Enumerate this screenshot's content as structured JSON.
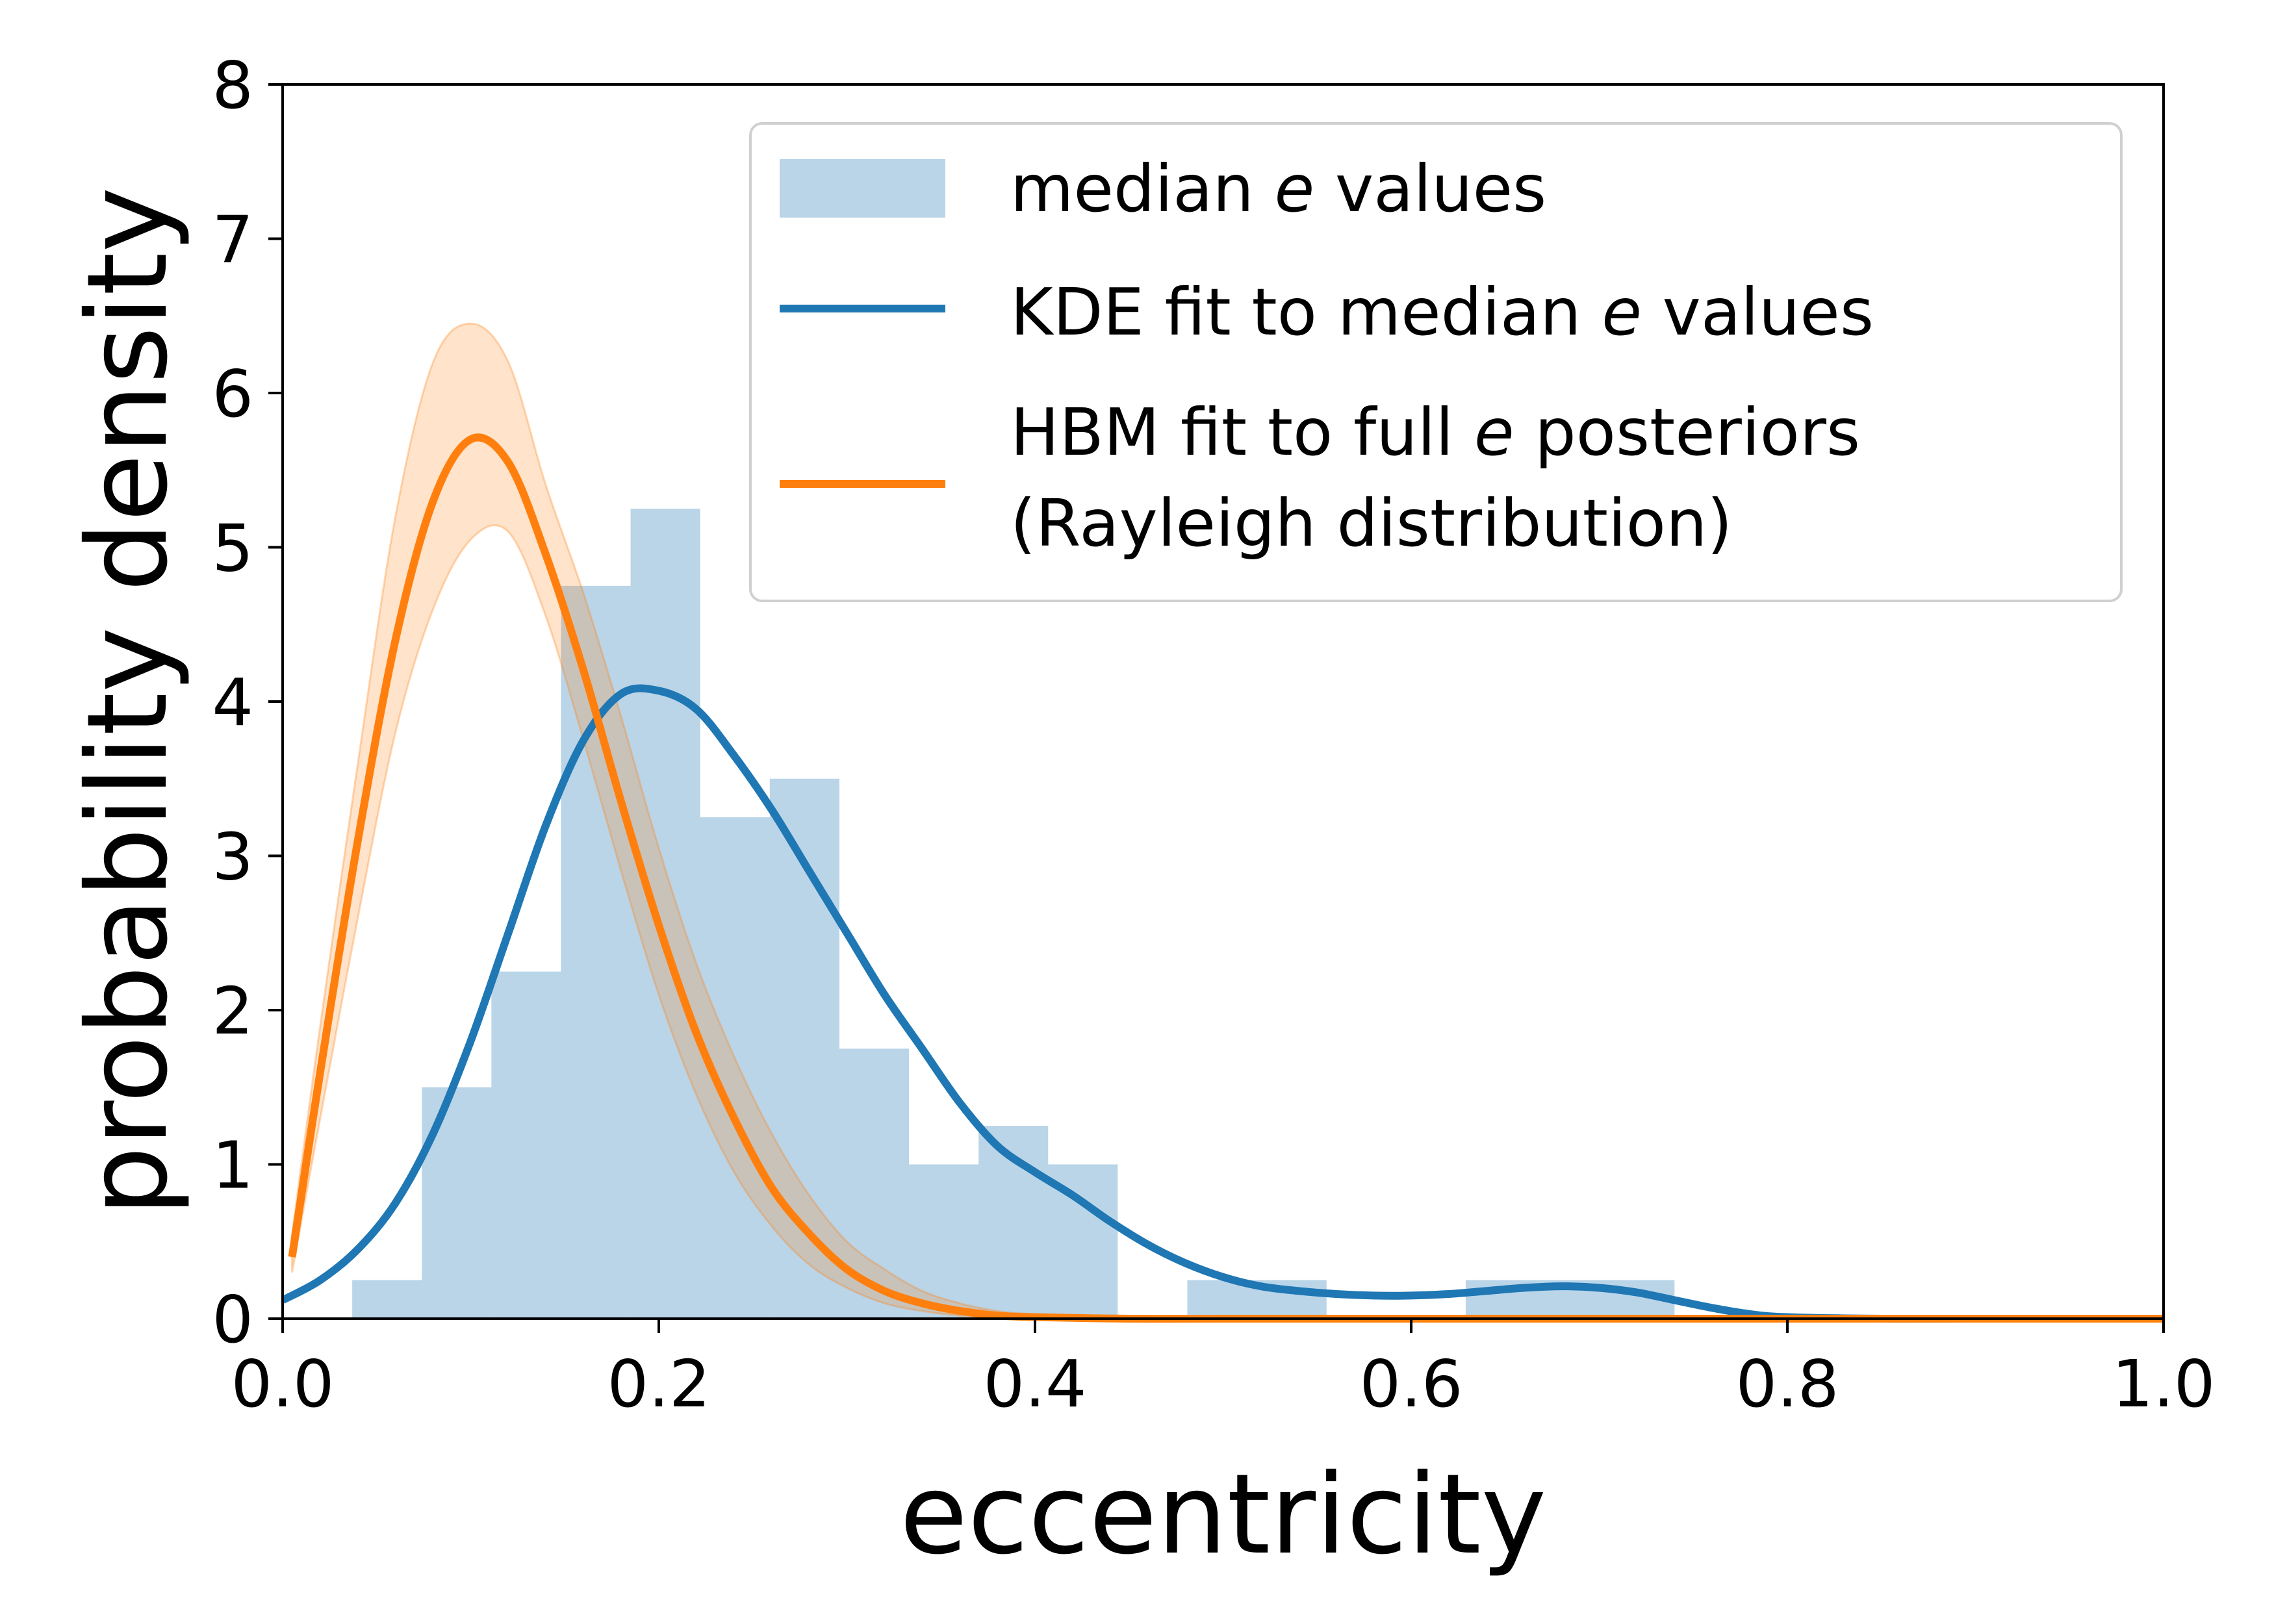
{
  "chart_data": {
    "type": "histogram",
    "xlabel": "eccentricity",
    "ylabel": "probability density",
    "xlim": [
      0.0,
      1.0
    ],
    "ylim": [
      0,
      8
    ],
    "x_ticks": [
      "0.0",
      "0.2",
      "0.4",
      "0.6",
      "0.8",
      "1.0"
    ],
    "y_ticks": [
      "0",
      "1",
      "2",
      "3",
      "4",
      "5",
      "6",
      "7",
      "8"
    ],
    "grid": false,
    "legend_position": "top-right",
    "colors": {
      "histogram": "#1f77b4",
      "kde": "#1f77b4",
      "hbm": "#ff7f0e"
    },
    "histogram": {
      "name": "median e values",
      "bins": [
        {
          "x0": 0.037,
          "x1": 0.074,
          "density": 0.25
        },
        {
          "x0": 0.074,
          "x1": 0.111,
          "density": 1.5
        },
        {
          "x0": 0.111,
          "x1": 0.148,
          "density": 2.25
        },
        {
          "x0": 0.148,
          "x1": 0.185,
          "density": 4.75
        },
        {
          "x0": 0.185,
          "x1": 0.222,
          "density": 5.25
        },
        {
          "x0": 0.222,
          "x1": 0.259,
          "density": 3.25
        },
        {
          "x0": 0.259,
          "x1": 0.296,
          "density": 3.5
        },
        {
          "x0": 0.296,
          "x1": 0.333,
          "density": 1.75
        },
        {
          "x0": 0.333,
          "x1": 0.37,
          "density": 1.0
        },
        {
          "x0": 0.37,
          "x1": 0.407,
          "density": 1.25
        },
        {
          "x0": 0.407,
          "x1": 0.444,
          "density": 1.0
        },
        {
          "x0": 0.481,
          "x1": 0.518,
          "density": 0.25
        },
        {
          "x0": 0.518,
          "x1": 0.555,
          "density": 0.25
        },
        {
          "x0": 0.629,
          "x1": 0.666,
          "density": 0.25
        },
        {
          "x0": 0.666,
          "x1": 0.703,
          "density": 0.25
        },
        {
          "x0": 0.703,
          "x1": 0.74,
          "density": 0.25
        }
      ]
    },
    "series": [
      {
        "name": "KDE fit to median e values",
        "x": [
          0.0,
          0.02,
          0.04,
          0.06,
          0.08,
          0.1,
          0.12,
          0.14,
          0.16,
          0.18,
          0.2,
          0.22,
          0.24,
          0.26,
          0.28,
          0.3,
          0.32,
          0.34,
          0.36,
          0.38,
          0.4,
          0.42,
          0.44,
          0.46,
          0.48,
          0.5,
          0.52,
          0.54,
          0.56,
          0.58,
          0.6,
          0.62,
          0.64,
          0.66,
          0.68,
          0.7,
          0.72,
          0.74,
          0.76,
          0.78,
          0.8,
          0.85,
          0.9,
          1.0
        ],
        "y": [
          0.12,
          0.25,
          0.45,
          0.75,
          1.2,
          1.8,
          2.5,
          3.2,
          3.75,
          4.05,
          4.07,
          3.95,
          3.65,
          3.3,
          2.9,
          2.5,
          2.1,
          1.75,
          1.4,
          1.12,
          0.95,
          0.8,
          0.63,
          0.48,
          0.36,
          0.27,
          0.21,
          0.18,
          0.16,
          0.15,
          0.15,
          0.16,
          0.18,
          0.2,
          0.21,
          0.2,
          0.17,
          0.12,
          0.07,
          0.03,
          0.01,
          0.0,
          0.0,
          0.0
        ]
      },
      {
        "name": "HBM fit to full e posteriors (Rayleigh distribution)",
        "x": [
          0.005,
          0.02,
          0.04,
          0.06,
          0.08,
          0.1,
          0.12,
          0.14,
          0.16,
          0.18,
          0.2,
          0.22,
          0.24,
          0.26,
          0.28,
          0.3,
          0.32,
          0.34,
          0.36,
          0.38,
          0.4,
          0.45,
          0.5,
          0.6,
          1.0
        ],
        "y": [
          0.4,
          1.6,
          3.1,
          4.4,
          5.3,
          5.7,
          5.55,
          4.95,
          4.2,
          3.35,
          2.55,
          1.85,
          1.3,
          0.85,
          0.55,
          0.32,
          0.18,
          0.1,
          0.05,
          0.02,
          0.01,
          0.0,
          0.0,
          0.0,
          0.0
        ],
        "band_upper": [
          0.55,
          1.9,
          3.6,
          5.2,
          6.2,
          6.45,
          6.2,
          5.4,
          4.7,
          3.9,
          3.05,
          2.3,
          1.7,
          1.2,
          0.8,
          0.5,
          0.32,
          0.18,
          0.1,
          0.05,
          0.03,
          0.01,
          0.0,
          0.0,
          0.0
        ],
        "band_lower": [
          0.3,
          1.3,
          2.6,
          3.8,
          4.6,
          5.05,
          5.1,
          4.55,
          3.75,
          2.9,
          2.1,
          1.45,
          0.95,
          0.6,
          0.35,
          0.2,
          0.1,
          0.05,
          0.02,
          0.01,
          0.0,
          0.0,
          0.0,
          0.0,
          0.0
        ]
      }
    ],
    "legend": {
      "entries": [
        {
          "pre": "median ",
          "italic": "e",
          "post": " values"
        },
        {
          "pre": "KDE fit to median ",
          "italic": "e",
          "post": " values"
        },
        {
          "pre": "HBM fit to full ",
          "italic": "e",
          "post": " posteriors"
        },
        {
          "pre": "(Rayleigh distribution)",
          "italic": "",
          "post": ""
        }
      ]
    }
  }
}
